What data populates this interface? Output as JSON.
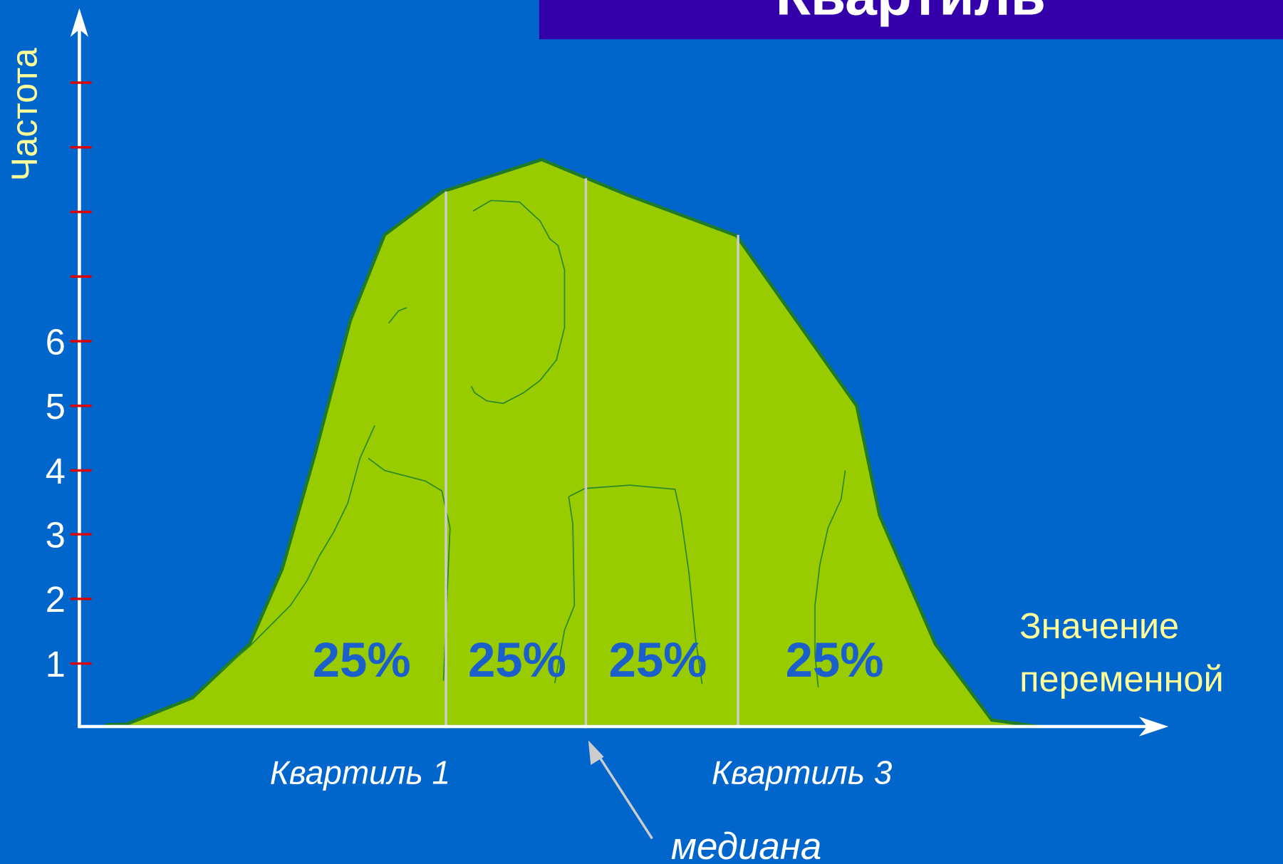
{
  "title": "Квартиль",
  "y_axis_label": "Частота",
  "y_ticks": [
    "1",
    "2",
    "3",
    "4",
    "5",
    "6"
  ],
  "x_axis_label": [
    "Значение",
    "переменной"
  ],
  "segments": [
    "25%",
    "25%",
    "25%",
    "25%"
  ],
  "quartile_labels": [
    "Квартиль 1",
    "Квартиль 3"
  ],
  "median_label": "медиана"
}
